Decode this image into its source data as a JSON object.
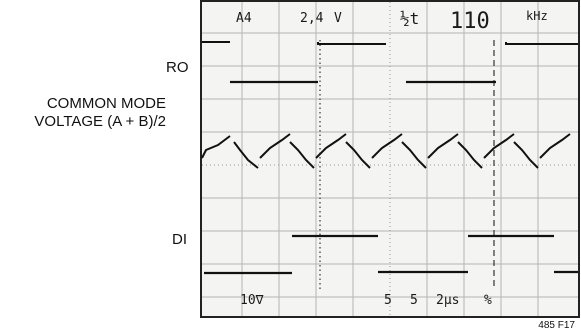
{
  "labels": {
    "ro": "RO",
    "common_mode_line1": "COMMON MODE",
    "common_mode_line2": "VOLTAGE (A + B)/2",
    "di": "DI",
    "figure_ref": "485 F17"
  },
  "scope": {
    "top_readout": {
      "channel": "A4",
      "volts": "2,4",
      "volts_unit": "V",
      "sweep_symbol": "½t",
      "frequency_value": "110",
      "frequency_unit": "kHz"
    },
    "bottom_readout": {
      "left": "10∇",
      "mid1": "5",
      "mid2": "5",
      "timebase": "2μs",
      "right": "%"
    }
  }
}
